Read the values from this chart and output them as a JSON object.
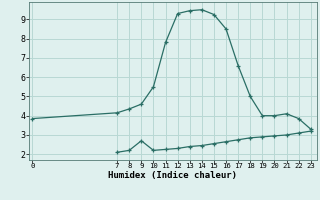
{
  "xlabel": "Humidex (Indice chaleur)",
  "bg_color": "#dff0ee",
  "grid_color": "#b8d8d4",
  "line_color": "#2a6e65",
  "curve1_x": [
    0,
    7,
    8,
    9,
    10,
    11,
    12,
    13,
    14,
    15,
    16,
    17,
    18,
    19,
    20,
    21,
    22,
    23
  ],
  "curve1_y": [
    3.85,
    4.15,
    4.35,
    4.6,
    5.5,
    7.8,
    9.3,
    9.45,
    9.5,
    9.25,
    8.5,
    6.6,
    5.0,
    4.0,
    4.0,
    4.1,
    3.85,
    3.3
  ],
  "curve2_x": [
    7,
    8,
    9,
    10,
    11,
    12,
    13,
    14,
    15,
    16,
    17,
    18,
    19,
    20,
    21,
    22,
    23
  ],
  "curve2_y": [
    2.1,
    2.2,
    2.7,
    2.2,
    2.25,
    2.3,
    2.4,
    2.45,
    2.55,
    2.65,
    2.75,
    2.85,
    2.9,
    2.95,
    3.0,
    3.1,
    3.2
  ],
  "yticks": [
    2,
    3,
    4,
    5,
    6,
    7,
    8,
    9
  ],
  "xticks": [
    0,
    7,
    8,
    9,
    10,
    11,
    12,
    13,
    14,
    15,
    16,
    17,
    18,
    19,
    20,
    21,
    22,
    23
  ],
  "xlim": [
    -0.3,
    23.5
  ],
  "ylim": [
    1.7,
    9.9
  ],
  "xlabel_fontsize": 6.5,
  "ytick_fontsize": 6.0,
  "xtick_fontsize": 5.2
}
